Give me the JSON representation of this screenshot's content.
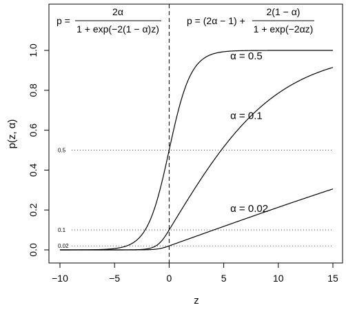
{
  "chart_data": {
    "type": "line",
    "xlabel": "z",
    "ylabel": "p(z, α)",
    "xlim": [
      -10,
      15
    ],
    "ylim": [
      0,
      1
    ],
    "x_ticks": [
      -10,
      -5,
      0,
      5,
      10,
      15
    ],
    "y_ticks": [
      "0.0",
      "0.2",
      "0.4",
      "0.6",
      "0.8",
      "1.0"
    ],
    "vertical_reference": {
      "x": 0,
      "style": "dashed"
    },
    "horizontal_references": [
      {
        "y": 0.5,
        "label": "0.5",
        "style": "dotted"
      },
      {
        "y": 0.1,
        "label": "0.1",
        "style": "dotted"
      },
      {
        "y": 0.02,
        "label": "0.02",
        "style": "dotted"
      }
    ],
    "formula_left": {
      "lhs": "p =",
      "numerator": "2α",
      "denominator": "1 + exp(−2(1 − α)z)"
    },
    "formula_right": {
      "lhs": "p = (2α − 1) +",
      "numerator": "2(1 − α)",
      "denominator": "1 + exp(−2αz)"
    },
    "series": [
      {
        "name": "α = 0.5",
        "alpha": 0.5,
        "label_at": {
          "x": 5.6,
          "y": 0.955
        }
      },
      {
        "name": "α = 0.1",
        "alpha": 0.1,
        "label_at": {
          "x": 5.6,
          "y": 0.655
        }
      },
      {
        "name": "α = 0.02",
        "alpha": 0.02,
        "label_at": {
          "x": 5.6,
          "y": 0.19
        }
      }
    ]
  }
}
